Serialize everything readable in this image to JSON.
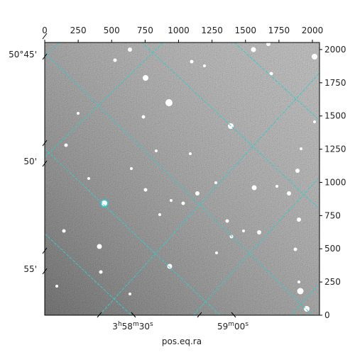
{
  "chart_data": {
    "type": "image",
    "xlabel": "pos.eq.ra",
    "xlim": [
      0,
      2053
    ],
    "xticks": [
      0,
      250,
      500,
      750,
      1000,
      1250,
      1500,
      1750,
      2000
    ],
    "ylim": [
      0,
      2053
    ],
    "yticks": [
      0,
      250,
      500,
      750,
      1000,
      1250,
      1500,
      1750,
      2000
    ],
    "dec_tick_labels": [
      "50°45'",
      "50'",
      "55'"
    ],
    "ra_tick_labels": [
      "3h58m30s",
      "59m00s"
    ],
    "grid_color": "#33cccc"
  }
}
